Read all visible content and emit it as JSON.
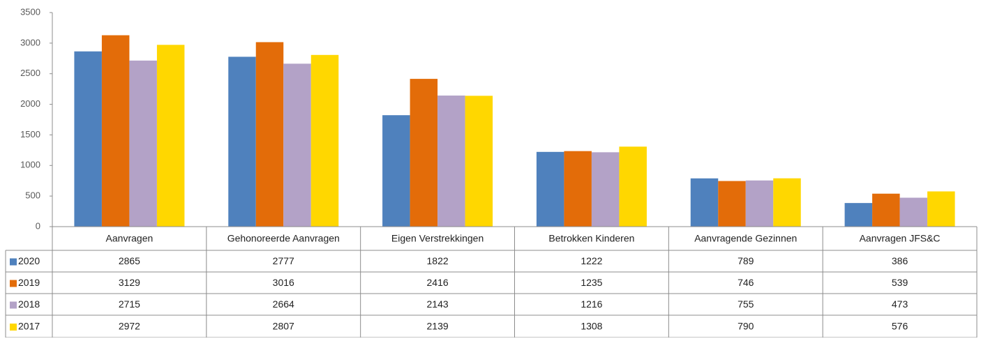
{
  "chart_data": {
    "type": "bar",
    "categories": [
      "Aanvragen",
      "Gehonoreerde Aanvragen",
      "Eigen Verstrekkingen",
      "Betrokken Kinderen",
      "Aanvragende Gezinnen",
      "Aanvragen JFS&C"
    ],
    "series": [
      {
        "name": "2020",
        "color": "#4f81bd",
        "values": [
          2865,
          2777,
          1822,
          1222,
          789,
          386
        ]
      },
      {
        "name": "2019",
        "color": "#e36c09",
        "values": [
          3129,
          3016,
          2416,
          1235,
          746,
          539
        ]
      },
      {
        "name": "2018",
        "color": "#b3a2c7",
        "values": [
          2715,
          2664,
          2143,
          1216,
          755,
          473
        ]
      },
      {
        "name": "2017",
        "color": "#ffd700",
        "values": [
          2972,
          2807,
          2139,
          1308,
          790,
          576
        ]
      }
    ],
    "ylim": [
      0,
      3500
    ],
    "yticks": [
      0,
      500,
      1000,
      1500,
      2000,
      2500,
      3000,
      3500
    ],
    "grid": false
  }
}
